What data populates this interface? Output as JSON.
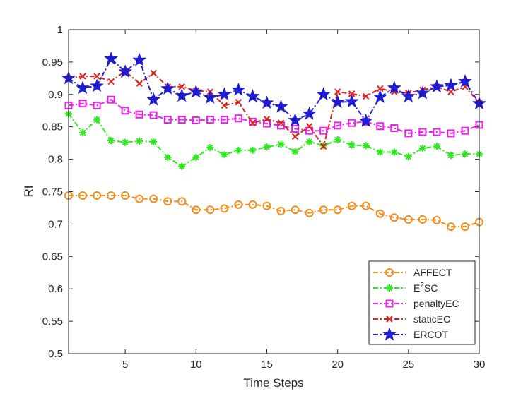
{
  "chart_data": {
    "type": "line",
    "title": "",
    "xlabel": "Time Steps",
    "ylabel": "RI",
    "xlim": [
      1,
      30
    ],
    "ylim": [
      0.5,
      1
    ],
    "xticks": [
      5,
      10,
      15,
      20,
      25,
      30
    ],
    "yticks": [
      0.5,
      0.55,
      0.6,
      0.65,
      0.7,
      0.75,
      0.8,
      0.85,
      0.9,
      0.95,
      1
    ],
    "xtick_labels": [
      "5",
      "10",
      "15",
      "20",
      "25",
      "30"
    ],
    "ytick_labels": [
      "0.5",
      "0.55",
      "0.6",
      "0.65",
      "0.7",
      "0.75",
      "0.8",
      "0.85",
      "0.9",
      "0.95",
      "1"
    ],
    "legend_position": "bottom-right",
    "x": [
      1,
      2,
      3,
      4,
      5,
      6,
      7,
      8,
      9,
      10,
      11,
      12,
      13,
      14,
      15,
      16,
      17,
      18,
      19,
      20,
      21,
      22,
      23,
      24,
      25,
      26,
      27,
      28,
      29,
      30
    ],
    "series": [
      {
        "name": "AFFECT",
        "marker": "circle",
        "color": "#F28E1C",
        "values": [
          0.744,
          0.744,
          0.744,
          0.744,
          0.744,
          0.739,
          0.739,
          0.735,
          0.735,
          0.722,
          0.722,
          0.724,
          0.73,
          0.73,
          0.728,
          0.72,
          0.722,
          0.717,
          0.722,
          0.722,
          0.728,
          0.728,
          0.716,
          0.71,
          0.707,
          0.707,
          0.706,
          0.696,
          0.696,
          0.703
        ]
      },
      {
        "name": "E²SC",
        "label_base": "E",
        "label_sup": "2",
        "label_rest": "SC",
        "marker": "asterisk",
        "color": "#2DE81E",
        "values": [
          0.87,
          0.841,
          0.861,
          0.829,
          0.826,
          0.828,
          0.827,
          0.803,
          0.789,
          0.803,
          0.818,
          0.807,
          0.814,
          0.814,
          0.819,
          0.823,
          0.812,
          0.827,
          0.821,
          0.83,
          0.822,
          0.821,
          0.811,
          0.811,
          0.804,
          0.817,
          0.82,
          0.806,
          0.808,
          0.808
        ]
      },
      {
        "name": "penaltyEC",
        "marker": "square",
        "color": "#E922E9",
        "values": [
          0.883,
          0.886,
          0.883,
          0.892,
          0.875,
          0.869,
          0.868,
          0.861,
          0.861,
          0.86,
          0.861,
          0.861,
          0.863,
          0.858,
          0.855,
          0.852,
          0.847,
          0.844,
          0.844,
          0.852,
          0.856,
          0.858,
          0.851,
          0.848,
          0.84,
          0.842,
          0.842,
          0.84,
          0.844,
          0.853
        ]
      },
      {
        "name": "staticEC",
        "marker": "x",
        "color": "#E0221C",
        "values": [
          0.925,
          0.928,
          0.928,
          0.92,
          0.936,
          0.917,
          0.933,
          0.912,
          0.912,
          0.906,
          0.904,
          0.883,
          0.888,
          0.856,
          0.862,
          0.856,
          0.835,
          0.851,
          0.82,
          0.904,
          0.901,
          0.897,
          0.909,
          0.904,
          0.902,
          0.907,
          0.912,
          0.904,
          0.912,
          0.887
        ]
      },
      {
        "name": "ERCOT",
        "marker": "star",
        "color": "#1F1DD0",
        "values": [
          0.925,
          0.91,
          0.913,
          0.955,
          0.935,
          0.953,
          0.892,
          0.909,
          0.898,
          0.904,
          0.895,
          0.9,
          0.907,
          0.897,
          0.887,
          0.881,
          0.86,
          0.87,
          0.9,
          0.888,
          0.889,
          0.859,
          0.896,
          0.91,
          0.897,
          0.902,
          0.912,
          0.914,
          0.92,
          0.886
        ]
      }
    ]
  }
}
